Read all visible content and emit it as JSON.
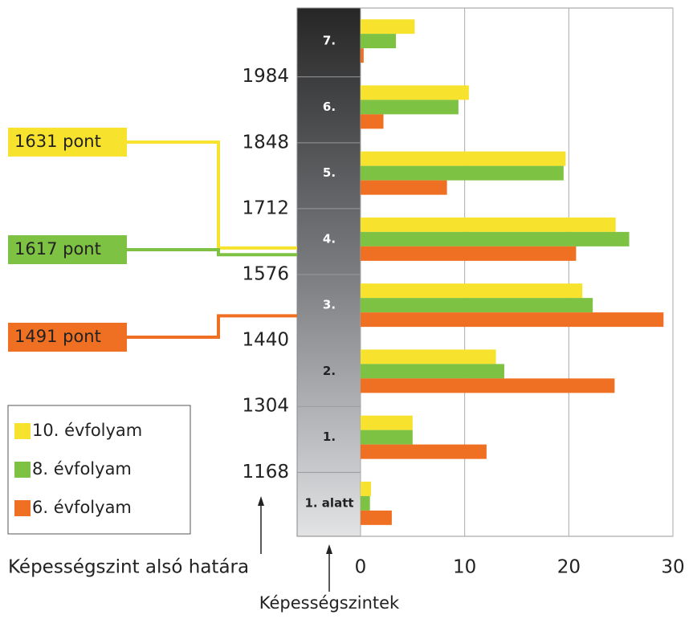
{
  "chart_data": {
    "type": "bar",
    "orientation": "horizontal",
    "categories": [
      "7.",
      "6.",
      "5.",
      "4.",
      "3.",
      "2.",
      "1.",
      "1. alatt"
    ],
    "series": [
      {
        "name": "10. évfolyam",
        "color": "#f7e22e",
        "values": [
          5.2,
          10.4,
          19.7,
          24.5,
          21.3,
          13.0,
          5.0,
          1.0
        ]
      },
      {
        "name": "8. évfolyam",
        "color": "#7dc242",
        "values": [
          3.4,
          9.4,
          19.5,
          25.8,
          22.3,
          13.8,
          5.0,
          0.9
        ]
      },
      {
        "name": "6. évfolyam",
        "color": "#f07023",
        "values": [
          0.3,
          2.2,
          8.3,
          20.7,
          29.1,
          24.4,
          12.1,
          3.0
        ]
      }
    ],
    "xlim": [
      0,
      30
    ],
    "xticks": [
      0,
      10,
      20,
      30
    ],
    "grid": true,
    "y2lim": [
      1036,
      2126
    ],
    "y2ticks": [
      1984,
      1848,
      1712,
      1576,
      1440,
      1304,
      1168
    ],
    "y2label": "Képességszint alsó határa",
    "ylabel": "Képességszintek",
    "annotations": [
      {
        "text": "1631 pont",
        "value": 1631,
        "color": "#f7e22e"
      },
      {
        "text": "1617 pont",
        "value": 1617,
        "color": "#7dc242"
      },
      {
        "text": "1491 pont",
        "value": 1491,
        "color": "#f07023"
      }
    ]
  }
}
